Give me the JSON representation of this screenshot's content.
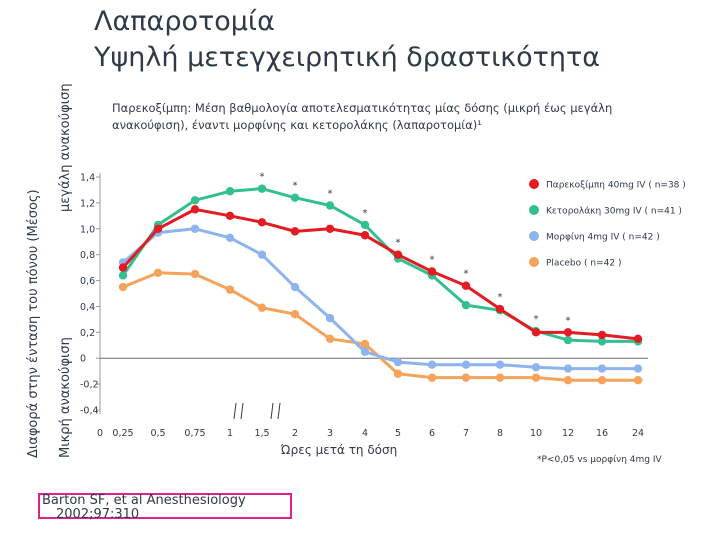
{
  "title_line1": "Λαπαροτομία",
  "title_line2": "Υψηλή μετεγχειρητική δραστικότητα",
  "subtitle": "Παρεκοξίμπη: Μέση βαθμολογία αποτελεσματικότητας μίας δόσης (μικρή έως μεγάλη ανακούφιση), έναντι μορφίνης και κετορολάκης (λαπαροτομία)¹",
  "ylabel_outer": "Διαφορά στην ένταση του πόνου (Μέσος)",
  "ylabel_bottom": "Μικρή ανακούφιση",
  "ylabel_top": "μεγάλη ανακούφιση",
  "citation_line1": "Barton SF, et al Anesthesiology",
  "citation_line2": "2002;97:310",
  "chart_data": {
    "type": "line",
    "title": "Παρεκοξίμπη: Μέση βαθμολογία αποτελεσματικότητας μίας δόσης",
    "xlabel": "Ώρες μετά τη δόση",
    "ylabel": "Διαφορά στην ένταση του πόνου (Μέσος)",
    "x_ticks": [
      "0",
      "0,25",
      "0,5",
      "0,75",
      "1",
      "1,5",
      "2",
      "3",
      "4",
      "5",
      "6",
      "7",
      "8",
      "10",
      "12",
      "16",
      "24"
    ],
    "x": [
      0.25,
      0.5,
      0.75,
      1,
      1.5,
      2,
      3,
      4,
      5,
      6,
      7,
      8,
      10,
      12,
      16,
      24
    ],
    "y_ticks": [
      "1,4",
      "1,2",
      "1,0",
      "0,8",
      "0,6",
      "0,4",
      "0,2",
      "0",
      "-0,2",
      "-0,4"
    ],
    "ylim": [
      -0.4,
      1.4
    ],
    "series": [
      {
        "name": "Παρεκοξίμπη 40mg IV ( n=38 )",
        "color": "#e31b23",
        "values": [
          0.7,
          1.0,
          1.15,
          1.1,
          1.05,
          0.98,
          1.0,
          0.95,
          0.8,
          0.67,
          0.56,
          0.38,
          0.2,
          0.2,
          0.18,
          0.15
        ]
      },
      {
        "name": "Κετορολάκη 30mg IV ( n=41 )",
        "color": "#34c08e",
        "values": [
          0.64,
          1.03,
          1.22,
          1.29,
          1.31,
          1.24,
          1.18,
          1.03,
          0.77,
          0.64,
          0.41,
          0.37,
          0.21,
          0.14,
          0.13,
          0.13
        ]
      },
      {
        "name": "Μορφίνη 4mg IV ( n=42 )",
        "color": "#8db4ec",
        "values": [
          0.74,
          0.97,
          1.0,
          0.93,
          0.8,
          0.55,
          0.31,
          0.05,
          -0.03,
          -0.05,
          -0.05,
          -0.05,
          -0.07,
          -0.08,
          -0.08,
          -0.08
        ]
      },
      {
        "name": "Placebo ( n=42 )",
        "color": "#f5a35b",
        "values": [
          0.55,
          0.66,
          0.65,
          0.53,
          0.39,
          0.34,
          0.15,
          0.11,
          -0.12,
          -0.15,
          -0.15,
          -0.15,
          -0.15,
          -0.17,
          -0.17,
          -0.17
        ]
      }
    ],
    "significance_marker": "*",
    "significant_x": [
      1.5,
      2,
      3,
      4,
      5,
      6,
      7,
      8,
      10,
      12
    ],
    "footnote": "*P<0,05 vs μορφίνη 4mg IV"
  }
}
